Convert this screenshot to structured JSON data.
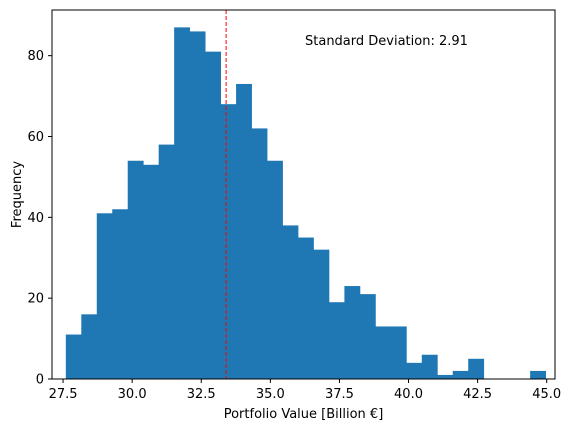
{
  "colors": {
    "bar": "#1f77b4",
    "mean_line": "#ff0000",
    "axes": "#000000",
    "background": "#ffffff"
  },
  "chart_data": {
    "type": "bar",
    "subtype": "histogram",
    "title": "",
    "xlabel": "Portfolio Value [Billion €]",
    "ylabel": "Frequency",
    "xlim": [
      27.1,
      45.3
    ],
    "ylim": [
      0,
      91.3
    ],
    "xticks": [
      27.5,
      30.0,
      32.5,
      35.0,
      37.5,
      40.0,
      42.5,
      45.0
    ],
    "xtick_labels": [
      "27.5",
      "30.0",
      "32.5",
      "35.0",
      "37.5",
      "40.0",
      "42.5",
      "45.0"
    ],
    "yticks": [
      0,
      20,
      40,
      60,
      80
    ],
    "ytick_labels": [
      "0",
      "20",
      "40",
      "60",
      "80"
    ],
    "bin_start": 27.6,
    "bin_width": 0.56,
    "values": [
      11,
      16,
      41,
      42,
      54,
      53,
      58,
      87,
      86,
      81,
      68,
      73,
      62,
      54,
      38,
      35,
      32,
      19,
      23,
      21,
      13,
      13,
      4,
      6,
      1,
      2,
      5,
      0,
      0,
      0,
      2
    ],
    "mean_line": {
      "x": 33.4,
      "style": "dashed",
      "color": "#ff0000"
    },
    "annotation": "Standard Deviation: 2.91",
    "grid": false,
    "legend": "none"
  }
}
